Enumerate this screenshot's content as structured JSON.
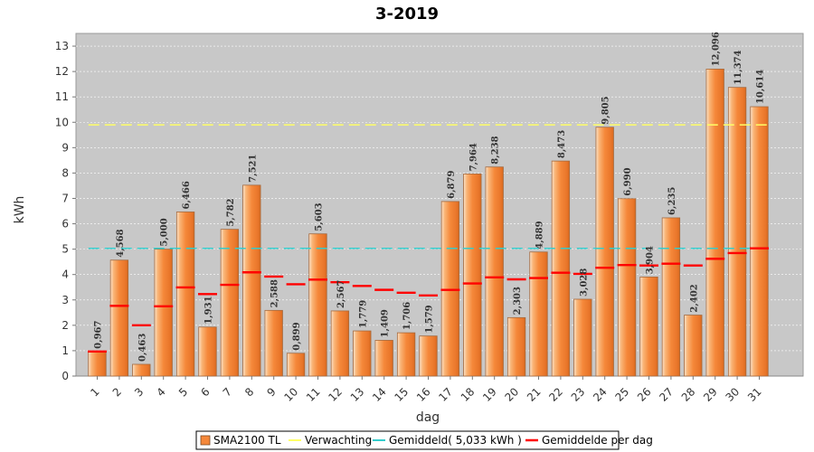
{
  "chart_data": {
    "type": "bar",
    "title": "3-2019",
    "xlabel": "dag",
    "ylabel": "kWh",
    "ylim": [
      0,
      13.5
    ],
    "yticks": [
      0,
      1,
      2,
      3,
      4,
      5,
      6,
      7,
      8,
      9,
      10,
      11,
      12,
      13
    ],
    "grid": true,
    "legend_position": "bottom",
    "categories": [
      "1",
      "2",
      "3",
      "4",
      "5",
      "6",
      "7",
      "8",
      "9",
      "10",
      "11",
      "12",
      "13",
      "14",
      "15",
      "16",
      "17",
      "18",
      "19",
      "20",
      "21",
      "22",
      "23",
      "24",
      "25",
      "26",
      "27",
      "28",
      "29",
      "30",
      "31"
    ],
    "series": [
      {
        "name": "SMA2100 TL",
        "type": "bar",
        "color": "#f5883a",
        "values": [
          0.967,
          4.568,
          0.463,
          5.0,
          6.466,
          1.931,
          5.782,
          7.521,
          2.588,
          0.899,
          5.603,
          2.567,
          1.779,
          1.409,
          1.706,
          1.579,
          6.879,
          7.964,
          8.238,
          2.303,
          4.889,
          8.473,
          3.028,
          9.805,
          6.99,
          3.904,
          6.235,
          2.402,
          12.096,
          11.374,
          10.614
        ],
        "labels": [
          "0,967",
          "4,568",
          "0,463",
          "5,000",
          "6,466",
          "1,931",
          "5,782",
          "7,521",
          "2,588",
          "0,899",
          "5,603",
          "2,567",
          "1,779",
          "1,409",
          "1,706",
          "1,579",
          "6,879",
          "7,964",
          "8,238",
          "2,303",
          "4,889",
          "8,473",
          "3,028",
          "9,805",
          "6,990",
          "3,904",
          "6,235",
          "2,402",
          "12,096",
          "11,374",
          "10,614"
        ]
      },
      {
        "name": "Verwachting",
        "type": "dashed-line",
        "color": "#ffff66",
        "value": 9.9
      },
      {
        "name": "Gemiddeld( 5,033 kWh )",
        "type": "dashed-line",
        "color": "#33cccc",
        "value": 5.033
      },
      {
        "name": "Gemiddelde per dag",
        "type": "marker",
        "color": "#ff0000",
        "values": [
          0.967,
          2.768,
          2.0,
          2.75,
          3.493,
          3.232,
          3.596,
          4.087,
          3.921,
          3.619,
          3.799,
          3.697,
          3.55,
          3.397,
          3.284,
          3.178,
          3.395,
          3.649,
          3.891,
          3.811,
          3.862,
          4.072,
          4.026,
          4.266,
          4.375,
          4.357,
          4.427,
          4.355,
          4.622,
          4.847,
          5.033
        ]
      }
    ]
  }
}
